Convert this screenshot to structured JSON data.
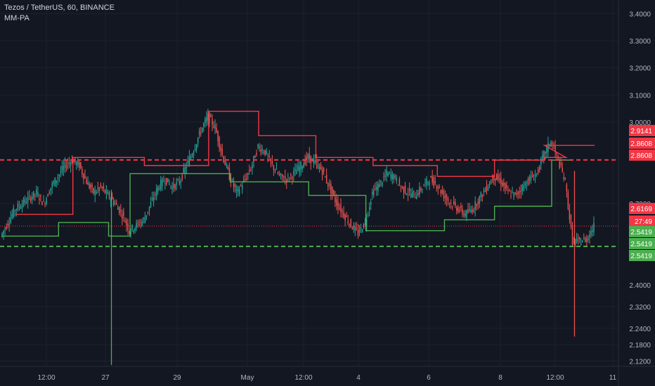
{
  "header": {
    "symbol_line": "Tezos / TetherUS, 60, BINANCE",
    "indicator": "MM-PA"
  },
  "colors": {
    "background": "#131722",
    "grid": "#1e222d",
    "up": "#26a69a",
    "down": "#ef5350",
    "text": "#b2b5be",
    "red_line": "#f23645",
    "green_line": "#4caf50"
  },
  "chart_data": {
    "type": "candlestick",
    "ylim": [
      2.1,
      3.45
    ],
    "y_ticks": [
      "3.4000",
      "3.3000",
      "3.2000",
      "3.1000",
      "3.0000",
      "2.9141",
      "2.8608",
      "2.8608",
      "2.7000",
      "2.6169",
      "2.5419",
      "2.5419",
      "2.5419",
      "2.4000",
      "2.3200",
      "2.2400",
      "2.1800",
      "2.1200"
    ],
    "x_ticks": [
      "12:00",
      "27",
      "29",
      "May",
      "12:00",
      "4",
      "6",
      "8",
      "12:00",
      "11"
    ],
    "price_tags": [
      {
        "label": "2.9141",
        "value": 2.9141,
        "color": "#f23645"
      },
      {
        "label": "2.8608",
        "value": 2.8608,
        "color": "#f23645"
      },
      {
        "label": "2.8608",
        "value": 2.8608,
        "color": "#f23645"
      },
      {
        "label": "2.6169",
        "value": 2.6169,
        "color": "#f23645"
      },
      {
        "label": "27:49",
        "value": 2.585,
        "color": "#f23645"
      },
      {
        "label": "2.5419",
        "value": 2.5419,
        "color": "#4caf50"
      },
      {
        "label": "2.5419",
        "value": 2.5419,
        "color": "#4caf50"
      },
      {
        "label": "2.5419",
        "value": 2.5419,
        "color": "#4caf50"
      }
    ],
    "hlines": [
      {
        "value": 2.8608,
        "style": "dashed",
        "color": "#f23645"
      },
      {
        "value": 2.5419,
        "style": "dashed",
        "color": "#4caf50"
      },
      {
        "value": 2.6169,
        "style": "dotted",
        "color": "#f23645"
      }
    ],
    "series": [
      {
        "values": [
          2.58,
          2.63,
          2.68,
          2.7,
          2.72,
          2.74,
          2.7,
          2.76,
          2.8,
          2.84,
          2.86,
          2.84,
          2.78,
          2.74,
          2.76,
          2.73,
          2.7,
          2.66,
          2.6,
          2.62,
          2.64,
          2.7,
          2.76,
          2.79,
          2.76,
          2.78,
          2.84,
          2.9,
          2.97,
          3.02,
          2.98,
          2.88,
          2.8,
          2.74,
          2.78,
          2.83,
          2.91,
          2.89,
          2.84,
          2.8,
          2.79,
          2.81,
          2.84,
          2.87,
          2.85,
          2.82,
          2.76,
          2.7,
          2.66,
          2.62,
          2.59,
          2.63,
          2.74,
          2.77,
          2.81,
          2.8,
          2.76,
          2.74,
          2.73,
          2.76,
          2.79,
          2.77,
          2.73,
          2.7,
          2.68,
          2.66,
          2.68,
          2.72,
          2.76,
          2.8,
          2.78,
          2.74,
          2.73,
          2.76,
          2.79,
          2.81,
          2.88,
          2.93,
          2.86,
          2.78,
          2.56,
          2.56,
          2.57,
          2.617
        ]
      }
    ],
    "steps_red": [
      {
        "x0": 2,
        "x1": 10,
        "y": 2.66
      },
      {
        "x0": 10,
        "x1": 20,
        "y": 2.87
      },
      {
        "x0": 20,
        "x1": 29,
        "y": 2.84
      },
      {
        "x0": 29,
        "x1": 36,
        "y": 3.04
      },
      {
        "x0": 36,
        "x1": 44,
        "y": 2.95
      },
      {
        "x0": 44,
        "x1": 52,
        "y": 2.87
      },
      {
        "x0": 52,
        "x1": 61,
        "y": 2.84
      },
      {
        "x0": 61,
        "x1": 69,
        "y": 2.8
      },
      {
        "x0": 69,
        "x1": 76,
        "y": 2.86
      },
      {
        "x0": 76,
        "x1": 79,
        "y": 2.87
      },
      {
        "x0": 76,
        "x1": 83,
        "y": 2.9141
      }
    ],
    "steps_green": [
      {
        "x0": 0,
        "x1": 8,
        "y": 2.58
      },
      {
        "x0": 8,
        "x1": 15,
        "y": 2.63
      },
      {
        "x0": 15,
        "x1": 18,
        "y": 2.58
      },
      {
        "x0": 18,
        "x1": 32,
        "y": 2.81
      },
      {
        "x0": 32,
        "x1": 43,
        "y": 2.78
      },
      {
        "x0": 43,
        "x1": 51,
        "y": 2.73
      },
      {
        "x0": 51,
        "x1": 62,
        "y": 2.6
      },
      {
        "x0": 62,
        "x1": 69,
        "y": 2.64
      },
      {
        "x0": 69,
        "x1": 77,
        "y": 2.69
      },
      {
        "x0": 77,
        "x1": 80,
        "y": 2.86
      }
    ]
  }
}
